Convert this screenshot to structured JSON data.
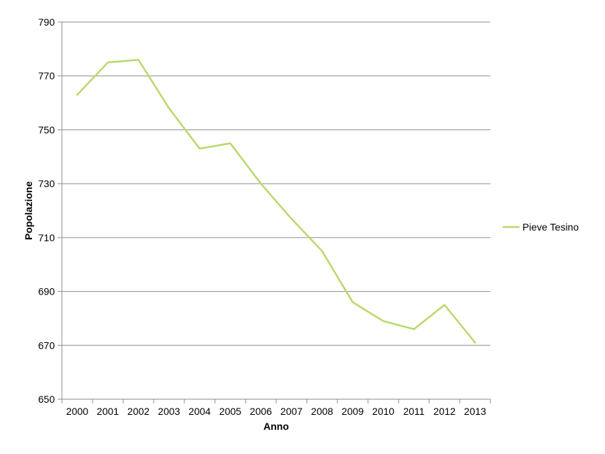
{
  "chart_data": {
    "type": "line",
    "title": "",
    "xlabel": "Anno",
    "ylabel": "Popolazione",
    "categories": [
      "2000",
      "2001",
      "2002",
      "2003",
      "2004",
      "2005",
      "2006",
      "2007",
      "2008",
      "2009",
      "2010",
      "2011",
      "2012",
      "2013"
    ],
    "series": [
      {
        "name": "Pieve Tesino",
        "color": "#b9d96a",
        "values": [
          763,
          775,
          776,
          758,
          743,
          745,
          730,
          717,
          705,
          686,
          679,
          676,
          685,
          671
        ]
      }
    ],
    "ylim": [
      650,
      790
    ],
    "yticks": [
      650,
      670,
      690,
      710,
      730,
      750,
      770,
      790
    ],
    "grid": true,
    "legend": "right"
  }
}
